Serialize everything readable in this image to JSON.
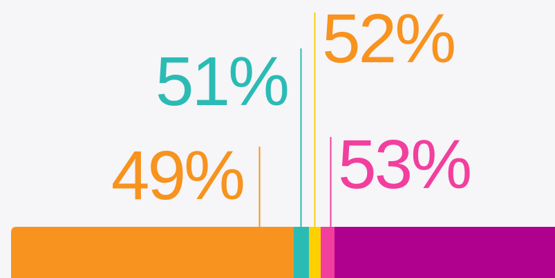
{
  "callouts": [
    {
      "label": "49%"
    },
    {
      "label": "51%"
    },
    {
      "label": "52%"
    },
    {
      "label": "53%"
    }
  ]
}
